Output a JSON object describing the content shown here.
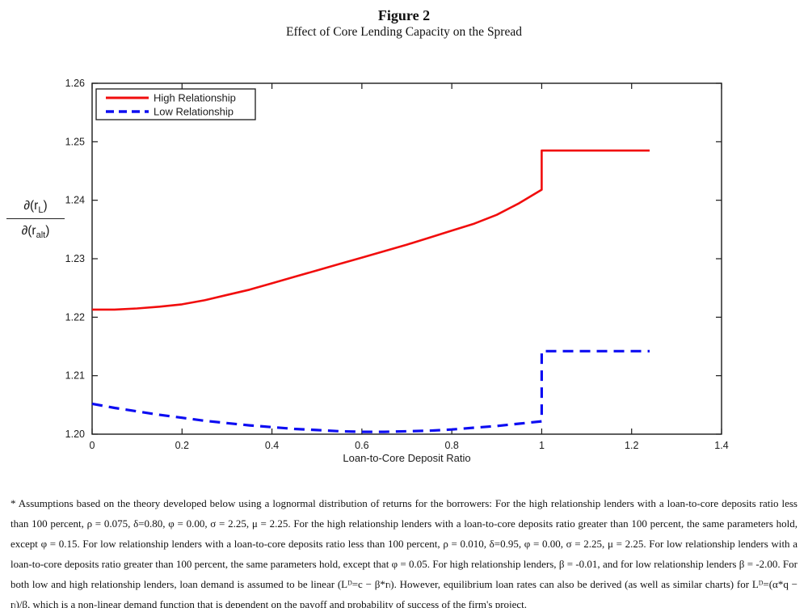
{
  "title": "Figure 2",
  "subtitle": "Effect of Core Lending Capacity on the Spread",
  "chart_data": {
    "type": "line",
    "title": "Figure 2 — Effect of Core Lending Capacity on the Spread",
    "xlabel": "Loan-to-Core Deposit Ratio",
    "ylabel": {
      "num_pre": "∂(r",
      "num_sub": "L",
      "num_post": ")",
      "den_pre": "∂(r",
      "den_sub": "alt",
      "den_post": ")"
    },
    "xlim": [
      0,
      1.4
    ],
    "ylim": [
      1.2,
      1.26
    ],
    "xticks": [
      0,
      0.2,
      0.4,
      0.6,
      0.8,
      1,
      1.2,
      1.4
    ],
    "xtick_labels": [
      "0",
      "0.2",
      "0.4",
      "0.6",
      "0.8",
      "1",
      "1.2",
      "1.4"
    ],
    "yticks": [
      1.2,
      1.21,
      1.22,
      1.23,
      1.24,
      1.25,
      1.26
    ],
    "ytick_labels": [
      "1.20",
      "1.21",
      "1.22",
      "1.23",
      "1.24",
      "1.25",
      "1.26"
    ],
    "grid": false,
    "legend_position": "top-left",
    "axis_color": "#1a1a1a",
    "series": [
      {
        "name": "High Relationship",
        "color": "#f10d0d",
        "style": "solid",
        "line_width": 2.6,
        "points": [
          [
            0,
            1.2213
          ],
          [
            0.05,
            1.2213
          ],
          [
            0.1,
            1.2215
          ],
          [
            0.15,
            1.2218
          ],
          [
            0.2,
            1.2222
          ],
          [
            0.25,
            1.2229
          ],
          [
            0.3,
            1.2238
          ],
          [
            0.35,
            1.2247
          ],
          [
            0.4,
            1.2258
          ],
          [
            0.45,
            1.2269
          ],
          [
            0.5,
            1.228
          ],
          [
            0.55,
            1.2291
          ],
          [
            0.6,
            1.2302
          ],
          [
            0.65,
            1.2313
          ],
          [
            0.7,
            1.2324
          ],
          [
            0.75,
            1.2336
          ],
          [
            0.8,
            1.2348
          ],
          [
            0.85,
            1.236
          ],
          [
            0.9,
            1.2375
          ],
          [
            0.95,
            1.2395
          ],
          [
            1.0,
            1.2418
          ],
          [
            1.0,
            1.2485
          ],
          [
            1.24,
            1.2485
          ]
        ]
      },
      {
        "name": "Low Relationship",
        "color": "#0d0df2",
        "style": "dashed",
        "line_width": 3.2,
        "points": [
          [
            0,
            1.2052
          ],
          [
            0.05,
            1.2045
          ],
          [
            0.1,
            1.2039
          ],
          [
            0.15,
            1.2033
          ],
          [
            0.2,
            1.2028
          ],
          [
            0.25,
            1.2023
          ],
          [
            0.3,
            1.2019
          ],
          [
            0.35,
            1.2015
          ],
          [
            0.4,
            1.2012
          ],
          [
            0.45,
            1.2009
          ],
          [
            0.5,
            1.2007
          ],
          [
            0.55,
            1.2005
          ],
          [
            0.6,
            1.2004
          ],
          [
            0.65,
            1.2004
          ],
          [
            0.7,
            1.2005
          ],
          [
            0.75,
            1.2006
          ],
          [
            0.8,
            1.2008
          ],
          [
            0.85,
            1.2011
          ],
          [
            0.9,
            1.2014
          ],
          [
            0.95,
            1.2018
          ],
          [
            1.0,
            1.2022
          ],
          [
            1.0,
            1.2142
          ],
          [
            1.24,
            1.2142
          ]
        ]
      }
    ]
  },
  "footnote": "* Assumptions based on the theory developed below using a lognormal distribution of returns for the borrowers: For the high relationship lenders with a loan-to-core deposits ratio less than 100 percent, ρ = 0.075, δ=0.80, φ = 0.00, σ = 2.25, μ = 2.25. For the high relationship lenders with a loan-to-core deposits ratio greater than 100 percent, the same parameters hold, except φ = 0.15. For low relationship lenders with a loan-to-core deposits ratio less than 100 percent, ρ = 0.010, δ=0.95, φ = 0.00, σ = 2.25, μ = 2.25. For low relationship lenders with a loan-to-core deposits ratio greater than 100 percent, the same parameters hold, except that φ = 0.05. For high relationship lenders, β = -0.01, and for low relationship lenders β = -2.00. For both low and high relationship lenders, loan demand is assumed to be linear (Lᴰ=c − β*rₗ). However, equilibrium loan rates can also be derived (as well as similar charts) for Lᴰ=(α*q − rₗ)/β, which is a non-linear demand function that is dependent on the payoff and probability of success of the firm's project."
}
